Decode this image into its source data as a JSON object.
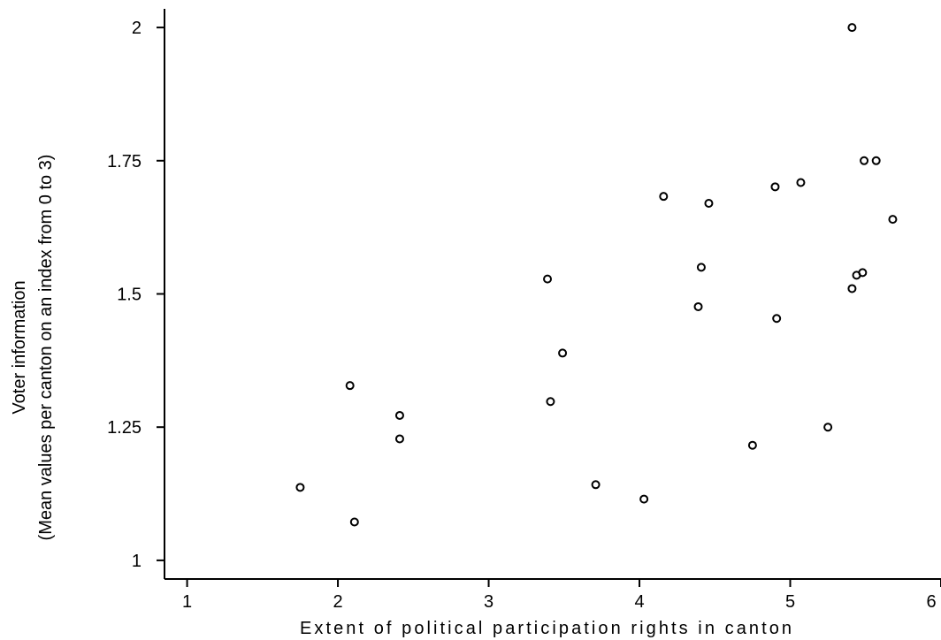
{
  "chart_data": {
    "type": "scatter",
    "title": "",
    "xlabel": "Extent of political participation rights in canton",
    "ylabel_lines": [
      "Voter information",
      "(Mean values per canton on an index from 0 to 3)"
    ],
    "xlim": [
      0.85,
      6.0
    ],
    "ylim": [
      0.965,
      2.035
    ],
    "x_ticks": [
      1,
      2,
      3,
      4,
      5,
      6
    ],
    "x_tick_labels": [
      "1",
      "2",
      "3",
      "4",
      "5",
      "6"
    ],
    "y_ticks": [
      1,
      1.25,
      1.5,
      1.75,
      2
    ],
    "y_tick_labels": [
      "1",
      "1.25",
      "1.5",
      "1.75",
      "2"
    ],
    "grid": false,
    "legend": "none",
    "marker": "hollow-circle",
    "marker_color": "#000000",
    "points": [
      {
        "x": 1.75,
        "y": 1.137
      },
      {
        "x": 2.08,
        "y": 1.328
      },
      {
        "x": 2.11,
        "y": 1.072
      },
      {
        "x": 2.41,
        "y": 1.272
      },
      {
        "x": 2.41,
        "y": 1.228
      },
      {
        "x": 3.39,
        "y": 1.528
      },
      {
        "x": 3.41,
        "y": 1.298
      },
      {
        "x": 3.49,
        "y": 1.389
      },
      {
        "x": 3.71,
        "y": 1.142
      },
      {
        "x": 4.03,
        "y": 1.115
      },
      {
        "x": 4.16,
        "y": 1.683
      },
      {
        "x": 4.39,
        "y": 1.476
      },
      {
        "x": 4.41,
        "y": 1.55
      },
      {
        "x": 4.46,
        "y": 1.67
      },
      {
        "x": 4.75,
        "y": 1.216
      },
      {
        "x": 4.9,
        "y": 1.701
      },
      {
        "x": 4.91,
        "y": 1.454
      },
      {
        "x": 5.07,
        "y": 1.709
      },
      {
        "x": 5.25,
        "y": 1.25
      },
      {
        "x": 5.41,
        "y": 2.0
      },
      {
        "x": 5.41,
        "y": 1.51
      },
      {
        "x": 5.44,
        "y": 1.535
      },
      {
        "x": 5.48,
        "y": 1.54
      },
      {
        "x": 5.49,
        "y": 1.75
      },
      {
        "x": 5.57,
        "y": 1.75
      },
      {
        "x": 5.68,
        "y": 1.64
      }
    ]
  }
}
